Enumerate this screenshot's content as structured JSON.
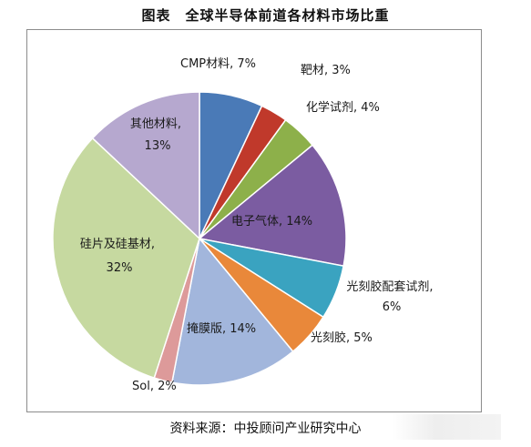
{
  "header": {
    "title": "图表　全球半导体前道各材料市场比重"
  },
  "footer": {
    "source": "资料来源：中投顾问产业研究中心"
  },
  "chart_data": {
    "type": "pie",
    "title": "",
    "start_angle_deg": 0,
    "direction": "clockwise",
    "slices": [
      {
        "label": "CMP材料, 7%",
        "value": 7,
        "color": "#4a7ab7"
      },
      {
        "label": "靶材, 3%",
        "value": 3,
        "color": "#c0392b"
      },
      {
        "label": "化学试剂, 4%",
        "value": 4,
        "color": "#8db04a"
      },
      {
        "label": "电子气体, 14%",
        "value": 14,
        "color": "#7b5ca1"
      },
      {
        "label": "光刻胶配套试剂, 6%",
        "value": 6,
        "color": "#3aa3c0"
      },
      {
        "label": "光刻胶, 5%",
        "value": 5,
        "color": "#e9883a"
      },
      {
        "label": "掩膜版, 14%",
        "value": 14,
        "color": "#a2b6dc"
      },
      {
        "label": "Sol, 2%",
        "value": 2,
        "color": "#dd9a9a"
      },
      {
        "label": "硅片及硅基材, 32%",
        "value": 32,
        "color": "#c6d9a0"
      },
      {
        "label": "其他材料, 13%",
        "value": 13,
        "color": "#b6a8cf"
      }
    ]
  }
}
